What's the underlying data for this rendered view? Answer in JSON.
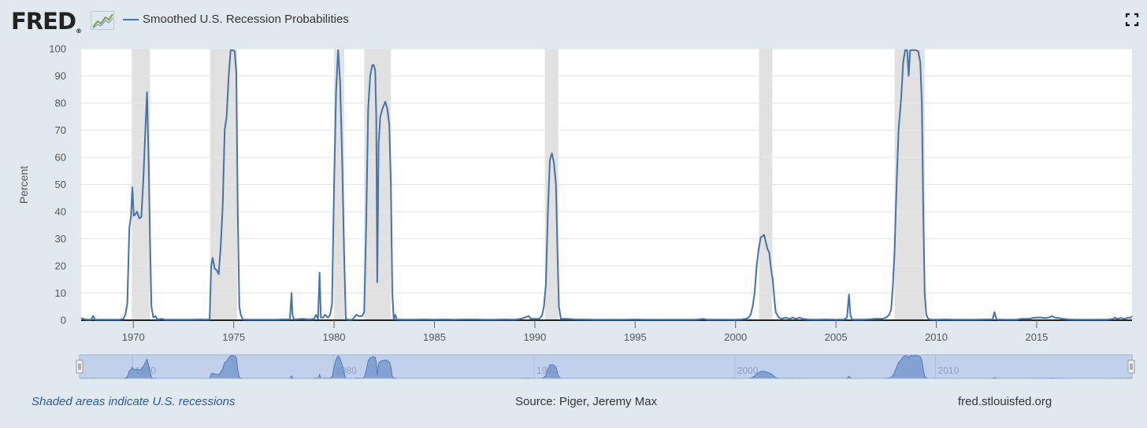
{
  "header": {
    "logo_text": "FRED",
    "logo_mark": "®",
    "series_title": "Smoothed U.S. Recession Probabilities",
    "line_color": "#4572a7"
  },
  "footer": {
    "note": "Shaded areas indicate U.S. recessions",
    "source": "Source: Piger, Jeremy Max",
    "site": "fred.stlouisfed.org"
  },
  "navigator": {
    "labels": [
      "1970",
      "1980",
      "1990",
      "2000",
      "2010"
    ]
  },
  "chart_data": {
    "type": "line",
    "ylabel": "Percent",
    "xlim": [
      1967.4,
      2019.75
    ],
    "ylim": [
      0,
      100
    ],
    "x_ticks": [
      "1970",
      "1975",
      "1980",
      "1985",
      "1990",
      "1995",
      "2000",
      "2005",
      "2010",
      "2015"
    ],
    "y_ticks": [
      "0",
      "10",
      "20",
      "30",
      "40",
      "50",
      "60",
      "70",
      "80",
      "90",
      "100"
    ],
    "grid": true,
    "recessions": [
      [
        1969.92,
        1970.83
      ],
      [
        1973.83,
        1975.17
      ],
      [
        1980.0,
        1980.5
      ],
      [
        1981.5,
        1982.83
      ],
      [
        1990.5,
        1991.17
      ],
      [
        2001.17,
        2001.83
      ],
      [
        2007.92,
        2009.42
      ]
    ],
    "series": [
      {
        "name": "Smoothed U.S. Recession Probabilities",
        "color": "#4572a7",
        "points": [
          [
            1967.4,
            0.8
          ],
          [
            1967.6,
            0.3
          ],
          [
            1967.9,
            0.2
          ],
          [
            1968.0,
            1.5
          ],
          [
            1968.1,
            0.2
          ],
          [
            1968.5,
            0.2
          ],
          [
            1968.9,
            0.2
          ],
          [
            1969.3,
            0.2
          ],
          [
            1969.5,
            0.5
          ],
          [
            1969.6,
            2.0
          ],
          [
            1969.7,
            6.0
          ],
          [
            1969.8,
            34.0
          ],
          [
            1969.88,
            38.0
          ],
          [
            1969.95,
            49.0
          ],
          [
            1970.02,
            38.5
          ],
          [
            1970.1,
            39.0
          ],
          [
            1970.18,
            40.0
          ],
          [
            1970.3,
            37.5
          ],
          [
            1970.4,
            38.0
          ],
          [
            1970.5,
            52.0
          ],
          [
            1970.6,
            70.0
          ],
          [
            1970.68,
            84.0
          ],
          [
            1970.76,
            60.0
          ],
          [
            1970.83,
            30.0
          ],
          [
            1970.9,
            5.0
          ],
          [
            1971.0,
            1.0
          ],
          [
            1971.1,
            1.5
          ],
          [
            1971.2,
            0.3
          ],
          [
            1971.4,
            0.5
          ],
          [
            1971.6,
            0.2
          ],
          [
            1972.0,
            0.2
          ],
          [
            1972.5,
            0.2
          ],
          [
            1973.0,
            0.2
          ],
          [
            1973.3,
            0.3
          ],
          [
            1973.6,
            0.2
          ],
          [
            1973.8,
            0.3
          ],
          [
            1973.88,
            20.0
          ],
          [
            1973.95,
            23.0
          ],
          [
            1974.05,
            19.0
          ],
          [
            1974.15,
            18.5
          ],
          [
            1974.25,
            17.0
          ],
          [
            1974.35,
            27.0
          ],
          [
            1974.45,
            42.0
          ],
          [
            1974.55,
            70.0
          ],
          [
            1974.65,
            75.0
          ],
          [
            1974.75,
            90.0
          ],
          [
            1974.85,
            99.5
          ],
          [
            1974.95,
            99.5
          ],
          [
            1975.05,
            99.0
          ],
          [
            1975.13,
            91.0
          ],
          [
            1975.2,
            40.0
          ],
          [
            1975.28,
            5.0
          ],
          [
            1975.35,
            2.0
          ],
          [
            1975.45,
            0.3
          ],
          [
            1975.7,
            0.2
          ],
          [
            1976.0,
            0.2
          ],
          [
            1976.5,
            0.2
          ],
          [
            1977.0,
            0.2
          ],
          [
            1977.5,
            0.3
          ],
          [
            1977.8,
            0.3
          ],
          [
            1977.88,
            10.0
          ],
          [
            1977.93,
            2.0
          ],
          [
            1978.0,
            0.3
          ],
          [
            1978.4,
            0.5
          ],
          [
            1978.8,
            0.3
          ],
          [
            1979.0,
            0.5
          ],
          [
            1979.1,
            2.0
          ],
          [
            1979.2,
            0.5
          ],
          [
            1979.28,
            17.5
          ],
          [
            1979.34,
            1.0
          ],
          [
            1979.45,
            1.0
          ],
          [
            1979.55,
            2.0
          ],
          [
            1979.7,
            1.0
          ],
          [
            1979.8,
            2.0
          ],
          [
            1979.9,
            6.0
          ],
          [
            1980.0,
            50.0
          ],
          [
            1980.1,
            84.0
          ],
          [
            1980.2,
            99.5
          ],
          [
            1980.3,
            88.0
          ],
          [
            1980.4,
            60.0
          ],
          [
            1980.5,
            25.0
          ],
          [
            1980.58,
            0.5
          ],
          [
            1980.7,
            0.2
          ],
          [
            1980.9,
            0.2
          ],
          [
            1981.0,
            1.0
          ],
          [
            1981.1,
            2.0
          ],
          [
            1981.25,
            1.5
          ],
          [
            1981.4,
            1.5
          ],
          [
            1981.5,
            3.0
          ],
          [
            1981.6,
            35.0
          ],
          [
            1981.7,
            78.0
          ],
          [
            1981.8,
            90.0
          ],
          [
            1981.9,
            94.0
          ],
          [
            1981.98,
            94.0
          ],
          [
            1982.05,
            92.0
          ],
          [
            1982.1,
            75.0
          ],
          [
            1982.15,
            14.0
          ],
          [
            1982.22,
            65.0
          ],
          [
            1982.3,
            75.0
          ],
          [
            1982.42,
            78.0
          ],
          [
            1982.55,
            80.5
          ],
          [
            1982.65,
            78.0
          ],
          [
            1982.75,
            72.0
          ],
          [
            1982.83,
            50.0
          ],
          [
            1982.9,
            10.0
          ],
          [
            1982.97,
            0.5
          ],
          [
            1983.05,
            2.0
          ],
          [
            1983.12,
            0.3
          ],
          [
            1983.5,
            0.2
          ],
          [
            1984.0,
            0.2
          ],
          [
            1984.5,
            0.3
          ],
          [
            1985.0,
            0.2
          ],
          [
            1985.5,
            0.3
          ],
          [
            1986.0,
            0.2
          ],
          [
            1986.5,
            0.3
          ],
          [
            1987.0,
            0.3
          ],
          [
            1987.5,
            0.2
          ],
          [
            1988.0,
            0.2
          ],
          [
            1988.5,
            0.3
          ],
          [
            1989.0,
            0.2
          ],
          [
            1989.3,
            0.5
          ],
          [
            1989.5,
            1.0
          ],
          [
            1989.7,
            1.5
          ],
          [
            1989.8,
            0.5
          ],
          [
            1990.0,
            0.5
          ],
          [
            1990.2,
            0.5
          ],
          [
            1990.35,
            1.5
          ],
          [
            1990.45,
            5.0
          ],
          [
            1990.55,
            13.0
          ],
          [
            1990.65,
            40.0
          ],
          [
            1990.75,
            59.0
          ],
          [
            1990.85,
            61.5
          ],
          [
            1990.95,
            58.0
          ],
          [
            1991.05,
            50.0
          ],
          [
            1991.13,
            25.0
          ],
          [
            1991.2,
            5.0
          ],
          [
            1991.3,
            0.5
          ],
          [
            1991.6,
            0.5
          ],
          [
            1992.0,
            0.3
          ],
          [
            1992.5,
            0.3
          ],
          [
            1993.0,
            0.2
          ],
          [
            1993.5,
            0.2
          ],
          [
            1994.0,
            0.2
          ],
          [
            1994.5,
            0.2
          ],
          [
            1995.0,
            0.3
          ],
          [
            1995.5,
            0.2
          ],
          [
            1996.0,
            0.2
          ],
          [
            1996.5,
            0.2
          ],
          [
            1997.0,
            0.2
          ],
          [
            1997.5,
            0.2
          ],
          [
            1998.0,
            0.2
          ],
          [
            1998.4,
            0.5
          ],
          [
            1998.6,
            0.2
          ],
          [
            1999.0,
            0.2
          ],
          [
            1999.5,
            0.2
          ],
          [
            2000.0,
            0.2
          ],
          [
            2000.3,
            0.3
          ],
          [
            2000.5,
            0.5
          ],
          [
            2000.65,
            1.0
          ],
          [
            2000.75,
            2.0
          ],
          [
            2000.85,
            5.0
          ],
          [
            2000.95,
            10.0
          ],
          [
            2001.05,
            20.0
          ],
          [
            2001.15,
            26.0
          ],
          [
            2001.25,
            30.5
          ],
          [
            2001.35,
            31.0
          ],
          [
            2001.42,
            31.5
          ],
          [
            2001.5,
            29.0
          ],
          [
            2001.6,
            26.0
          ],
          [
            2001.68,
            25.0
          ],
          [
            2001.75,
            20.0
          ],
          [
            2001.85,
            15.0
          ],
          [
            2001.93,
            8.0
          ],
          [
            2002.0,
            3.0
          ],
          [
            2002.15,
            1.0
          ],
          [
            2002.3,
            0.5
          ],
          [
            2002.5,
            1.0
          ],
          [
            2002.7,
            0.5
          ],
          [
            2002.85,
            1.0
          ],
          [
            2003.0,
            0.5
          ],
          [
            2003.2,
            1.0
          ],
          [
            2003.35,
            0.5
          ],
          [
            2003.6,
            0.3
          ],
          [
            2004.0,
            0.2
          ],
          [
            2004.5,
            0.3
          ],
          [
            2005.0,
            0.2
          ],
          [
            2005.4,
            0.3
          ],
          [
            2005.55,
            1.0
          ],
          [
            2005.65,
            9.5
          ],
          [
            2005.72,
            2.0
          ],
          [
            2005.8,
            0.3
          ],
          [
            2006.0,
            0.2
          ],
          [
            2006.5,
            0.3
          ],
          [
            2007.0,
            0.5
          ],
          [
            2007.3,
            0.5
          ],
          [
            2007.5,
            1.0
          ],
          [
            2007.65,
            2.0
          ],
          [
            2007.75,
            4.0
          ],
          [
            2007.83,
            12.0
          ],
          [
            2007.92,
            25.0
          ],
          [
            2008.0,
            45.0
          ],
          [
            2008.12,
            70.0
          ],
          [
            2008.25,
            82.0
          ],
          [
            2008.35,
            95.0
          ],
          [
            2008.45,
            99.5
          ],
          [
            2008.55,
            99.5
          ],
          [
            2008.62,
            90.0
          ],
          [
            2008.7,
            99.5
          ],
          [
            2008.85,
            99.5
          ],
          [
            2008.98,
            99.5
          ],
          [
            2009.1,
            99.0
          ],
          [
            2009.2,
            95.0
          ],
          [
            2009.28,
            80.0
          ],
          [
            2009.35,
            40.0
          ],
          [
            2009.42,
            10.0
          ],
          [
            2009.5,
            2.0
          ],
          [
            2009.6,
            0.5
          ],
          [
            2009.8,
            0.2
          ],
          [
            2010.0,
            0.2
          ],
          [
            2010.5,
            0.3
          ],
          [
            2011.0,
            0.2
          ],
          [
            2011.5,
            0.2
          ],
          [
            2012.0,
            0.2
          ],
          [
            2012.5,
            0.3
          ],
          [
            2012.8,
            0.3
          ],
          [
            2012.9,
            3.0
          ],
          [
            2013.0,
            0.3
          ],
          [
            2013.5,
            0.2
          ],
          [
            2014.0,
            0.2
          ],
          [
            2014.2,
            0.5
          ],
          [
            2014.4,
            0.5
          ],
          [
            2014.6,
            0.5
          ],
          [
            2014.8,
            0.8
          ],
          [
            2015.0,
            1.0
          ],
          [
            2015.2,
            1.0
          ],
          [
            2015.4,
            0.8
          ],
          [
            2015.6,
            1.0
          ],
          [
            2015.75,
            1.5
          ],
          [
            2015.9,
            1.0
          ],
          [
            2016.1,
            0.8
          ],
          [
            2016.3,
            0.5
          ],
          [
            2016.6,
            0.3
          ],
          [
            2017.0,
            0.2
          ],
          [
            2017.5,
            0.2
          ],
          [
            2018.0,
            0.2
          ],
          [
            2018.5,
            0.2
          ],
          [
            2018.8,
            0.5
          ],
          [
            2018.9,
            1.0
          ],
          [
            2019.0,
            0.5
          ],
          [
            2019.2,
            0.8
          ],
          [
            2019.4,
            0.5
          ],
          [
            2019.55,
            1.0
          ],
          [
            2019.65,
            0.8
          ],
          [
            2019.75,
            1.5
          ]
        ]
      }
    ]
  }
}
